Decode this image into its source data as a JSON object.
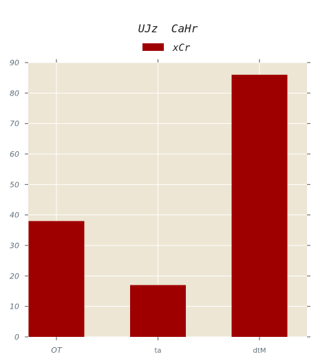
{
  "chart_data": {
    "type": "bar",
    "title": "UJz  CaHr",
    "xlabel": "",
    "ylabel": "",
    "categories": [
      "OT",
      "ta",
      "dtM"
    ],
    "series": [
      {
        "name": "xCr",
        "values": [
          38,
          17,
          86
        ],
        "color": "#9e0000"
      }
    ],
    "ylim": [
      0,
      90
    ],
    "yticks": [
      0,
      10,
      20,
      30,
      40,
      50,
      60,
      70,
      80,
      90
    ],
    "grid": true,
    "legend": "top-center",
    "plot_background": "#ede6d4",
    "gridline_color": "#ffffff"
  }
}
